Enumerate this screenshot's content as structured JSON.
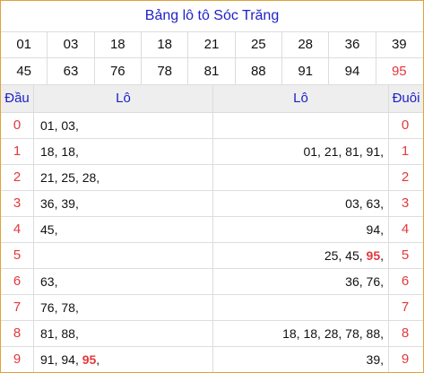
{
  "title": "Bảng lô tô Sóc Trăng",
  "numbers_row1": [
    "01",
    "03",
    "18",
    "18",
    "21",
    "25",
    "28",
    "36",
    "39"
  ],
  "numbers_row2": [
    "45",
    "63",
    "76",
    "78",
    "81",
    "88",
    "91",
    "94",
    "95"
  ],
  "highlight_number": "95",
  "header": {
    "dau": "Đầu",
    "lo_left": "Lô",
    "lo_right": "Lô",
    "duoi": "Đuôi"
  },
  "rows": [
    {
      "dau": "0",
      "lo1": "01, 03,",
      "lo2": "",
      "duoi": "0"
    },
    {
      "dau": "1",
      "lo1": "18, 18,",
      "lo2": "01, 21, 81, 91,",
      "duoi": "1"
    },
    {
      "dau": "2",
      "lo1": "21, 25, 28,",
      "lo2": "",
      "duoi": "2"
    },
    {
      "dau": "3",
      "lo1": "36, 39,",
      "lo2": "03, 63,",
      "duoi": "3"
    },
    {
      "dau": "4",
      "lo1": "45,",
      "lo2": "94,",
      "duoi": "4"
    },
    {
      "dau": "5",
      "lo1": "",
      "lo2": "25, 45, 95,",
      "duoi": "5"
    },
    {
      "dau": "6",
      "lo1": "63,",
      "lo2": "36, 76,",
      "duoi": "6"
    },
    {
      "dau": "7",
      "lo1": "76, 78,",
      "lo2": "",
      "duoi": "7"
    },
    {
      "dau": "8",
      "lo1": "81, 88,",
      "lo2": "18, 18, 28, 78, 88,",
      "duoi": "8"
    },
    {
      "dau": "9",
      "lo1": "91, 94, 95,",
      "lo2": "39,",
      "duoi": "9"
    }
  ],
  "colors": {
    "border": "#e0a23a",
    "title": "#1e22c6",
    "accent": "#e4383b"
  }
}
